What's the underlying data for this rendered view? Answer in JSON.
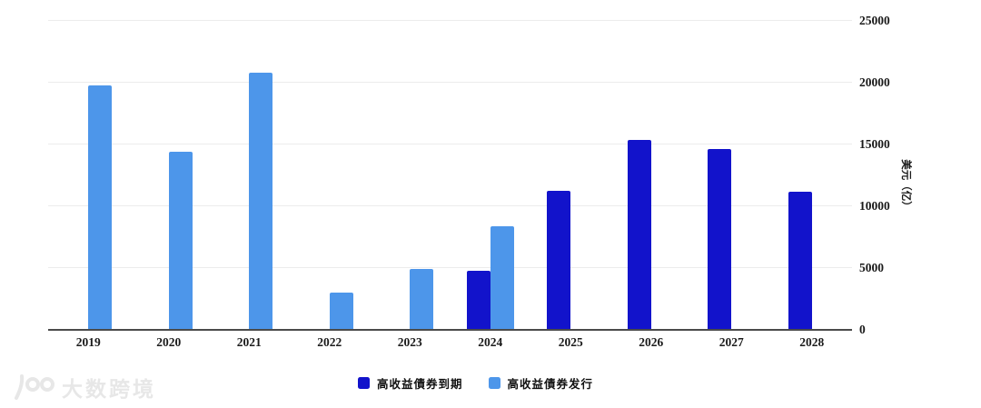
{
  "chart_data": {
    "type": "bar",
    "title": "",
    "categories": [
      "2019",
      "2020",
      "2021",
      "2022",
      "2023",
      "2024",
      "2025",
      "2026",
      "2027",
      "2028"
    ],
    "series": [
      {
        "name": "高收益債券到期",
        "color": "#1213cb",
        "values": [
          null,
          null,
          null,
          null,
          null,
          4800,
          11250,
          15400,
          14600,
          11200
        ]
      },
      {
        "name": "高收益債券发行",
        "color": "#4d96ea",
        "values": [
          19800,
          14400,
          20800,
          3000,
          4900,
          8400,
          null,
          null,
          null,
          null
        ]
      }
    ],
    "xlabel": "",
    "ylabel": "美元（亿）",
    "ylim": [
      0,
      25000
    ],
    "yticks": [
      0,
      5000,
      10000,
      15000,
      20000,
      25000
    ],
    "grid": true,
    "y_axis_side": "right",
    "legend_position": "bottom"
  },
  "colors": {
    "axis_line": "#4a4a4a",
    "gridline": "#ececec",
    "tick_text": "#1a1a1a",
    "watermark": "#e7e7e7"
  },
  "watermark": {
    "text": "大数跨境"
  }
}
